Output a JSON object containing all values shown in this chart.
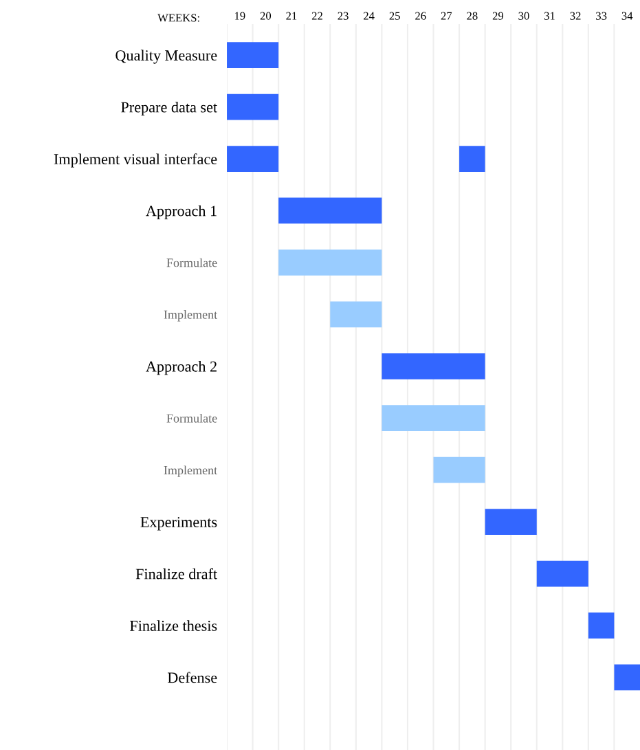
{
  "chart_data": {
    "type": "bar",
    "orientation": "horizontal",
    "xlabel": "WEEKS:",
    "categories": [
      "Quality Measure",
      "Prepare data set",
      "Implement visual interface",
      "Approach 1",
      "Formulate",
      "Implement",
      "Approach 2",
      "Formulate",
      "Implement",
      "Experiments",
      "Finalize draft",
      "Finalize thesis",
      "Defense"
    ],
    "series": [
      {
        "color": "#3366ff",
        "base": [
          19,
          19,
          19,
          21,
          null,
          null,
          25,
          null,
          null,
          29,
          31,
          33,
          34
        ],
        "values": [
          2,
          2,
          2,
          4,
          null,
          null,
          4,
          null,
          null,
          2,
          2,
          1,
          1
        ]
      },
      {
        "color": "#3366ff",
        "base": [
          null,
          null,
          28,
          null,
          null,
          null,
          null,
          null,
          null,
          null,
          null,
          null,
          null
        ],
        "values": [
          null,
          null,
          1,
          null,
          null,
          null,
          null,
          null,
          null,
          null,
          null,
          null,
          null
        ]
      },
      {
        "color": "#99ccff",
        "base": [
          null,
          null,
          null,
          null,
          21,
          23,
          null,
          25,
          27,
          null,
          null,
          null,
          null
        ],
        "values": [
          null,
          null,
          null,
          null,
          4,
          2,
          null,
          4,
          2,
          null,
          null,
          null,
          null
        ]
      }
    ],
    "xlim": [
      19,
      35
    ],
    "xticks": [
      {
        "value": 19,
        "label": null
      },
      {
        "value": 19.5,
        "label": "19"
      },
      {
        "value": 20,
        "label": null
      },
      {
        "value": 20.5,
        "label": "20"
      },
      {
        "value": 21,
        "label": null
      },
      {
        "value": 21.5,
        "label": "21"
      },
      {
        "value": 22,
        "label": null
      },
      {
        "value": 22.5,
        "label": "22"
      },
      {
        "value": 23,
        "label": null
      },
      {
        "value": 23.5,
        "label": "23"
      },
      {
        "value": 24,
        "label": null
      },
      {
        "value": 24.5,
        "label": "24"
      },
      {
        "value": 25,
        "label": null
      },
      {
        "value": 25.5,
        "label": "25"
      },
      {
        "value": 26,
        "label": null
      },
      {
        "value": 26.5,
        "label": "26"
      },
      {
        "value": 27,
        "label": null
      },
      {
        "value": 27.5,
        "label": "27"
      },
      {
        "value": 28,
        "label": null
      },
      {
        "value": 28.5,
        "label": "28"
      },
      {
        "value": 29,
        "label": null
      },
      {
        "value": 29.5,
        "label": "29"
      },
      {
        "value": 30,
        "label": null
      },
      {
        "value": 30.5,
        "label": "30"
      },
      {
        "value": 31,
        "label": null
      },
      {
        "value": 31.5,
        "label": "31"
      },
      {
        "value": 32,
        "label": null
      },
      {
        "value": 32.5,
        "label": "32"
      },
      {
        "value": 33,
        "label": null
      },
      {
        "value": 33.5,
        "label": "33"
      },
      {
        "value": 34,
        "label": null
      },
      {
        "value": 34.5,
        "label": "34"
      }
    ],
    "grid": "x"
  }
}
